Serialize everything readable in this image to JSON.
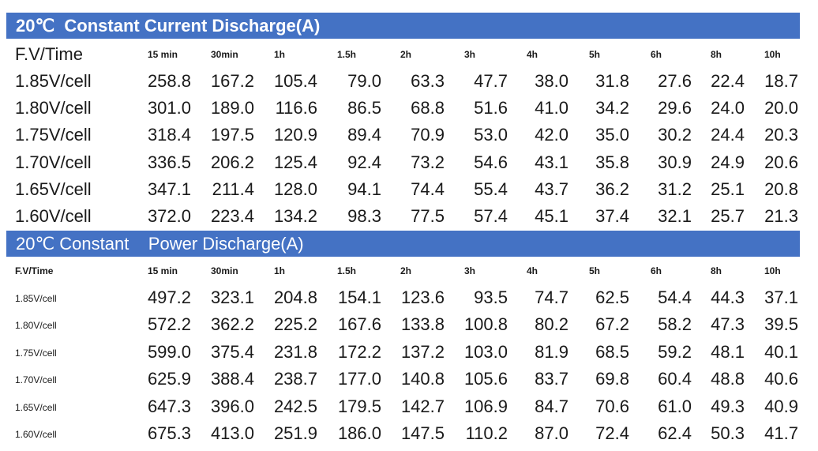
{
  "tables": [
    {
      "title": "20℃  Constant Current Discharge(A)",
      "header_label": "F.V/Time",
      "columns": [
        "15 min",
        "30min",
        "1h",
        "1.5h",
        "2h",
        "3h",
        "4h",
        "5h",
        "6h",
        "8h",
        "10h"
      ],
      "rows": [
        {
          "label": "1.85V/cell",
          "values": [
            "258.8",
            "167.2",
            "105.4",
            "79.0",
            "63.3",
            "47.7",
            "38.0",
            "31.8",
            "27.6",
            "22.4",
            "18.7"
          ]
        },
        {
          "label": "1.80V/cell",
          "values": [
            "301.0",
            "189.0",
            "116.6",
            "86.5",
            "68.8",
            "51.6",
            "41.0",
            "34.2",
            "29.6",
            "24.0",
            "20.0"
          ]
        },
        {
          "label": "1.75V/cell",
          "values": [
            "318.4",
            "197.5",
            "120.9",
            "89.4",
            "70.9",
            "53.0",
            "42.0",
            "35.0",
            "30.2",
            "24.4",
            "20.3"
          ]
        },
        {
          "label": "1.70V/cell",
          "values": [
            "336.5",
            "206.2",
            "125.4",
            "92.4",
            "73.2",
            "54.6",
            "43.1",
            "35.8",
            "30.9",
            "24.9",
            "20.6"
          ]
        },
        {
          "label": "1.65V/cell",
          "values": [
            "347.1",
            "211.4",
            "128.0",
            "94.1",
            "74.4",
            "55.4",
            "43.7",
            "36.2",
            "31.2",
            "25.1",
            "20.8"
          ]
        },
        {
          "label": "1.60V/cell",
          "values": [
            "372.0",
            "223.4",
            "134.2",
            "98.3",
            "77.5",
            "57.4",
            "45.1",
            "37.4",
            "32.1",
            "25.7",
            "21.3"
          ]
        }
      ]
    },
    {
      "title": "20℃ Constant    Power Discharge(A)",
      "header_label": "F.V/Time",
      "columns": [
        "15 min",
        "30min",
        "1h",
        "1.5h",
        "2h",
        "3h",
        "4h",
        "5h",
        "6h",
        "8h",
        "10h"
      ],
      "rows": [
        {
          "label": "1.85V/cell",
          "values": [
            "497.2",
            "323.1",
            "204.8",
            "154.1",
            "123.6",
            "93.5",
            "74.7",
            "62.5",
            "54.4",
            "44.3",
            "37.1"
          ]
        },
        {
          "label": "1.80V/cell",
          "values": [
            "572.2",
            "362.2",
            "225.2",
            "167.6",
            "133.8",
            "100.8",
            "80.2",
            "67.2",
            "58.2",
            "47.3",
            "39.5"
          ]
        },
        {
          "label": "1.75V/cell",
          "values": [
            "599.0",
            "375.4",
            "231.8",
            "172.2",
            "137.2",
            "103.0",
            "81.9",
            "68.5",
            "59.2",
            "48.1",
            "40.1"
          ]
        },
        {
          "label": "1.70V/cell",
          "values": [
            "625.9",
            "388.4",
            "238.7",
            "177.0",
            "140.8",
            "105.6",
            "83.7",
            "69.8",
            "60.4",
            "48.8",
            "40.6"
          ]
        },
        {
          "label": "1.65V/cell",
          "values": [
            "647.3",
            "396.0",
            "242.5",
            "179.5",
            "142.7",
            "106.9",
            "84.7",
            "70.6",
            "61.0",
            "49.3",
            "40.9"
          ]
        },
        {
          "label": "1.60V/cell",
          "values": [
            "675.3",
            "413.0",
            "251.9",
            "186.0",
            "147.5",
            "110.2",
            "87.0",
            "72.4",
            "62.4",
            "50.3",
            "41.7"
          ]
        }
      ]
    }
  ]
}
